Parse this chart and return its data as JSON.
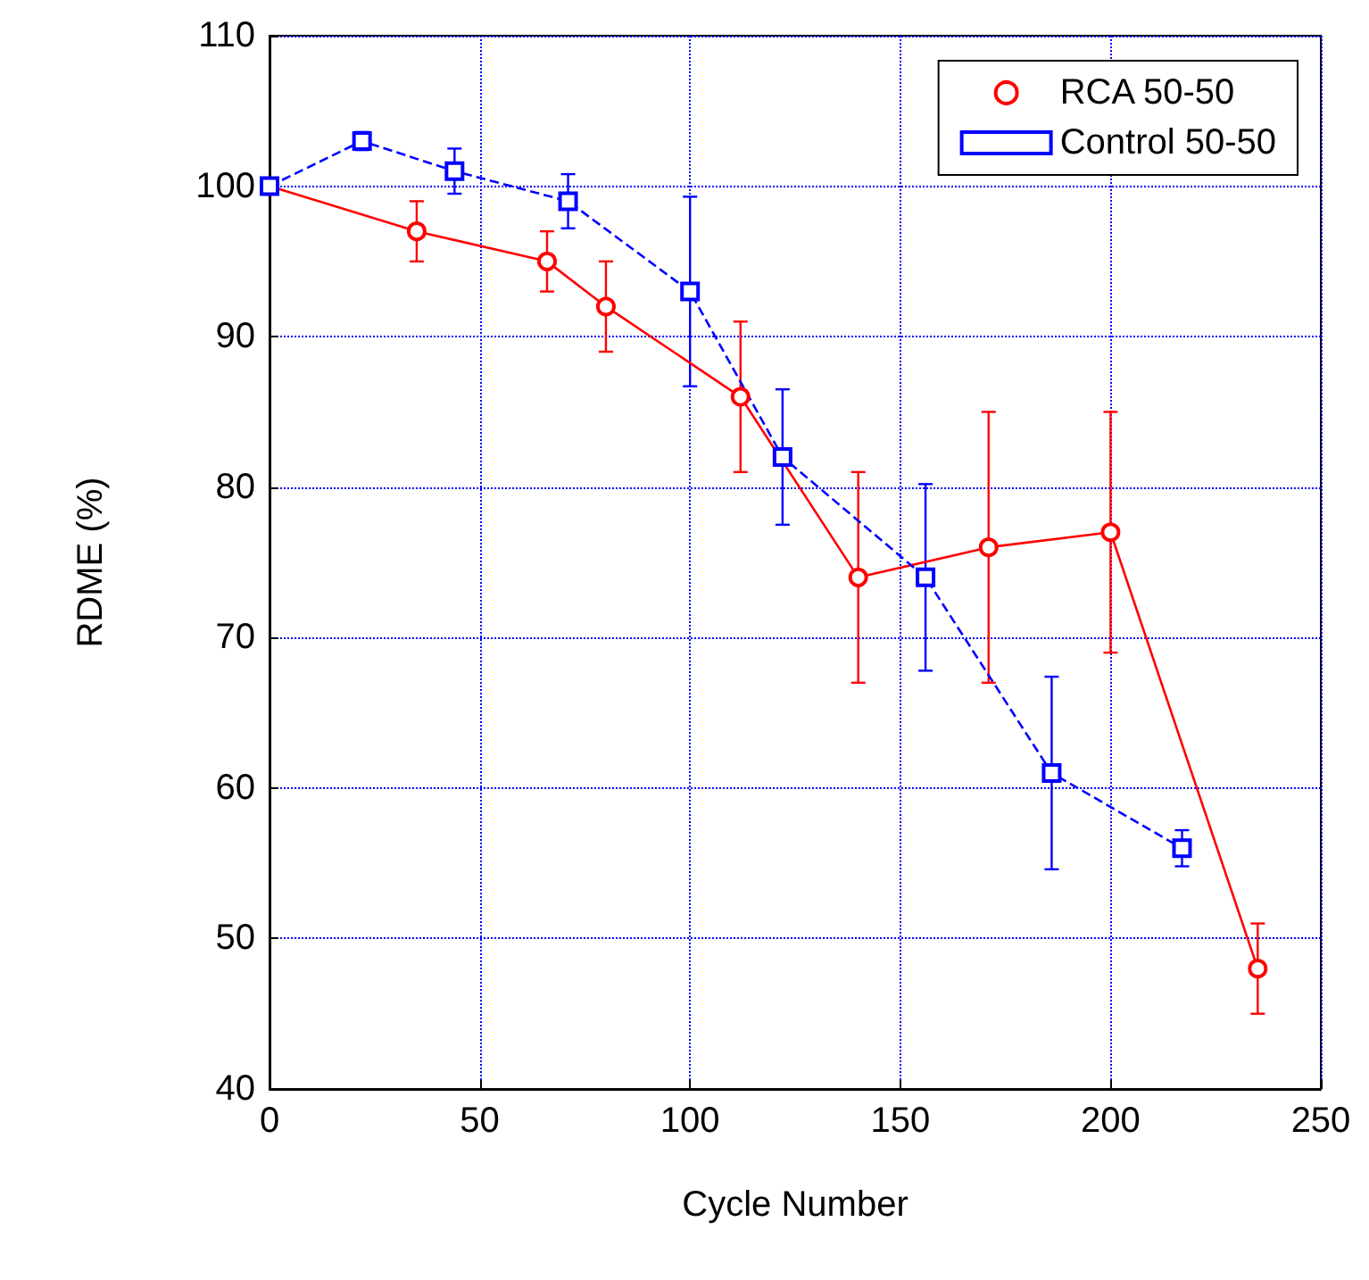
{
  "chart_data": {
    "type": "line",
    "xlabel": "Cycle Number",
    "ylabel": "RDME (%)",
    "xlim": [
      0,
      250
    ],
    "xticks": [
      0,
      50,
      100,
      150,
      200,
      250
    ],
    "ylim": [
      40,
      110
    ],
    "yticks": [
      40,
      50,
      60,
      70,
      80,
      90,
      100,
      110
    ],
    "grid": true,
    "legend": "top right",
    "series": [
      {
        "name": "RCA 50-50",
        "color": "#ff0000",
        "marker": "circle",
        "line_style": "solid",
        "x": [
          0,
          35,
          66,
          80,
          112,
          140,
          171,
          200,
          235
        ],
        "values": [
          100,
          97,
          95,
          92,
          86,
          74,
          76,
          77,
          48
        ],
        "errors": [
          null,
          2,
          2,
          3,
          5,
          7,
          9,
          8,
          3
        ]
      },
      {
        "name": "Control 50-50",
        "color": "#0000ff",
        "marker": "square",
        "line_style": "dashed",
        "x": [
          0,
          22,
          44,
          71,
          100,
          122,
          156,
          186,
          217
        ],
        "values": [
          100,
          103,
          101,
          99,
          93,
          82,
          74,
          61,
          56
        ],
        "errors": [
          null,
          0.6,
          1.5,
          1.8,
          6.3,
          4.5,
          6.2,
          6.4,
          1.2
        ]
      }
    ]
  }
}
